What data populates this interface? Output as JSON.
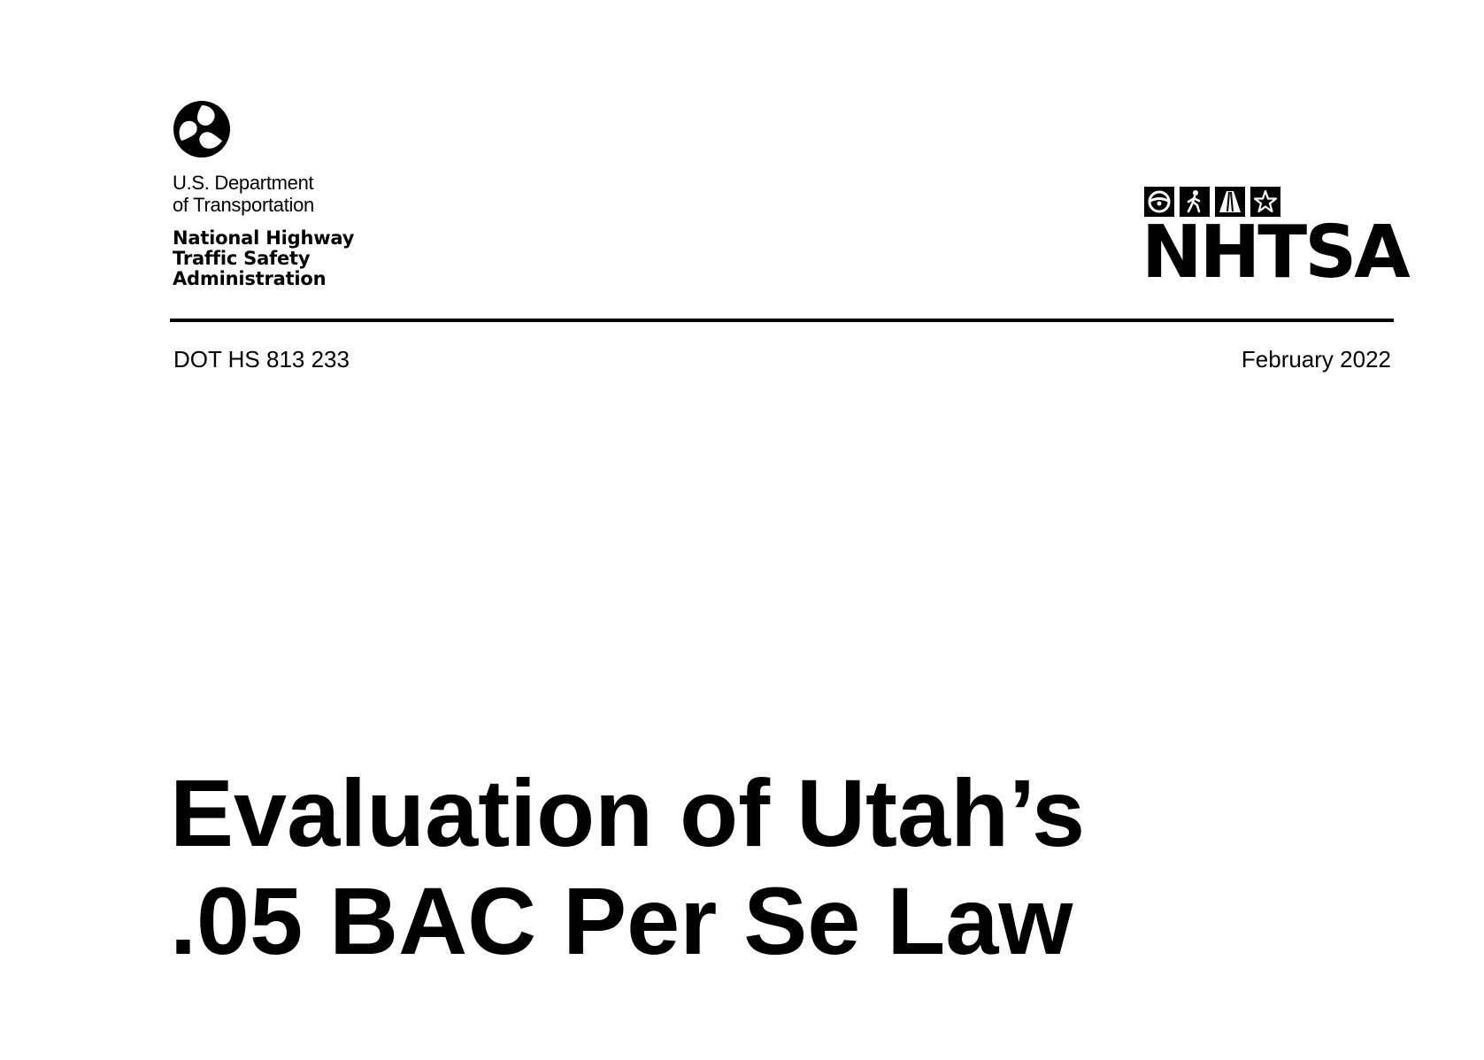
{
  "header": {
    "department_line_1": "U.S. Department",
    "department_line_2": "of Transportation",
    "agency_line_1": "National Highway",
    "agency_line_2": "Traffic Safety",
    "agency_line_3": "Administration",
    "dot_logo_icon": "dot-triskelion-icon",
    "nhtsa_icons": [
      "steering-wheel-icon",
      "pedestrian-icon",
      "road-icon",
      "star-icon"
    ],
    "nhtsa_wordmark": "NHTSA"
  },
  "meta": {
    "report_number": "DOT HS 813 233",
    "date": "February 2022"
  },
  "title": {
    "line_1": "Evaluation of Utah’s",
    "line_2": ".05 BAC Per Se Law"
  }
}
